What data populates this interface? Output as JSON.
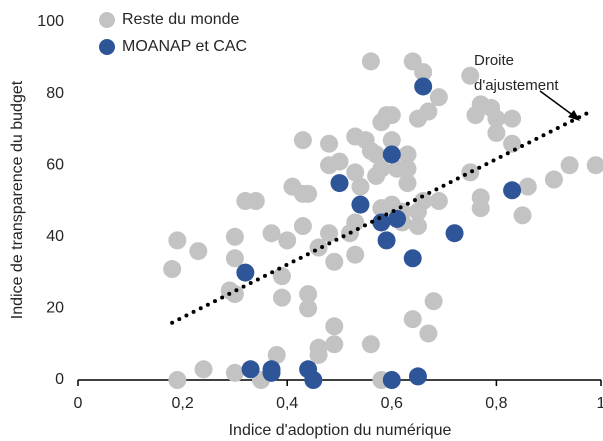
{
  "chart_data": {
    "type": "scatter",
    "xlabel": "Indice d'adoption du numérique",
    "ylabel": "Indice de transparence du budget",
    "xlim": [
      0,
      1
    ],
    "ylim": [
      0,
      100
    ],
    "xticks": [
      0,
      {
        "value": 0.2,
        "label": "0,2"
      },
      {
        "value": 0.4,
        "label": "0,4"
      },
      {
        "value": 0.6,
        "label": "0,6"
      },
      {
        "value": 0.8,
        "label": "0,8"
      },
      1
    ],
    "yticks": [
      0,
      20,
      40,
      60,
      80,
      100
    ],
    "legend": "top-left",
    "series": [
      {
        "name": "Reste du monde",
        "color": "#c3c3c3",
        "x": [
          0.18,
          0.19,
          0.19,
          0.23,
          0.24,
          0.3,
          0.3,
          0.29,
          0.3,
          0.3,
          0.32,
          0.34,
          0.35,
          0.37,
          0.38,
          0.4,
          0.39,
          0.39,
          0.41,
          0.43,
          0.43,
          0.43,
          0.44,
          0.44,
          0.44,
          0.46,
          0.46,
          0.46,
          0.48,
          0.48,
          0.48,
          0.49,
          0.49,
          0.49,
          0.5,
          0.52,
          0.53,
          0.53,
          0.53,
          0.53,
          0.54,
          0.55,
          0.56,
          0.56,
          0.56,
          0.57,
          0.57,
          0.58,
          0.58,
          0.58,
          0.58,
          0.59,
          0.6,
          0.6,
          0.61,
          0.6,
          0.62,
          0.62,
          0.63,
          0.63,
          0.63,
          0.64,
          0.64,
          0.65,
          0.65,
          0.65,
          0.66,
          0.66,
          0.67,
          0.67,
          0.68,
          0.69,
          0.69,
          0.75,
          0.75,
          0.76,
          0.77,
          0.77,
          0.77,
          0.79,
          0.8,
          0.8,
          0.83,
          0.83,
          0.85,
          0.86,
          0.91,
          0.94,
          0.99
        ],
        "values": [
          31,
          39,
          0,
          36,
          3,
          40,
          34,
          25,
          24,
          2,
          50,
          50,
          0,
          41,
          7,
          39,
          29,
          23,
          54,
          52,
          43,
          67,
          24,
          20,
          52,
          7,
          9,
          37,
          60,
          66,
          41,
          10,
          33,
          15,
          61,
          41,
          68,
          44,
          35,
          58,
          54,
          67,
          89,
          10,
          64,
          63,
          57,
          0,
          48,
          72,
          59,
          74,
          74,
          67,
          59,
          49,
          44,
          47,
          63,
          55,
          59,
          89,
          17,
          47,
          73,
          43,
          86,
          50,
          13,
          75,
          22,
          79,
          50,
          85,
          58,
          74,
          77,
          48,
          51,
          76,
          69,
          73,
          73,
          66,
          46,
          54,
          56,
          60,
          60
        ]
      },
      {
        "name": "MOANAP et CAC",
        "color": "#2e5597",
        "x": [
          0.32,
          0.33,
          0.37,
          0.37,
          0.44,
          0.45,
          0.5,
          0.54,
          0.58,
          0.59,
          0.6,
          0.6,
          0.61,
          0.64,
          0.65,
          0.66,
          0.72,
          0.83
        ],
        "values": [
          30,
          3,
          3,
          2,
          3,
          0,
          55,
          49,
          44,
          39,
          0,
          63,
          45,
          34,
          1,
          82,
          41,
          53
        ]
      }
    ],
    "trend_line": {
      "x": [
        0.18,
        0.98
      ],
      "values": [
        16,
        75
      ]
    },
    "annotation": [
      "Droite",
      "d'ajustement"
    ]
  }
}
